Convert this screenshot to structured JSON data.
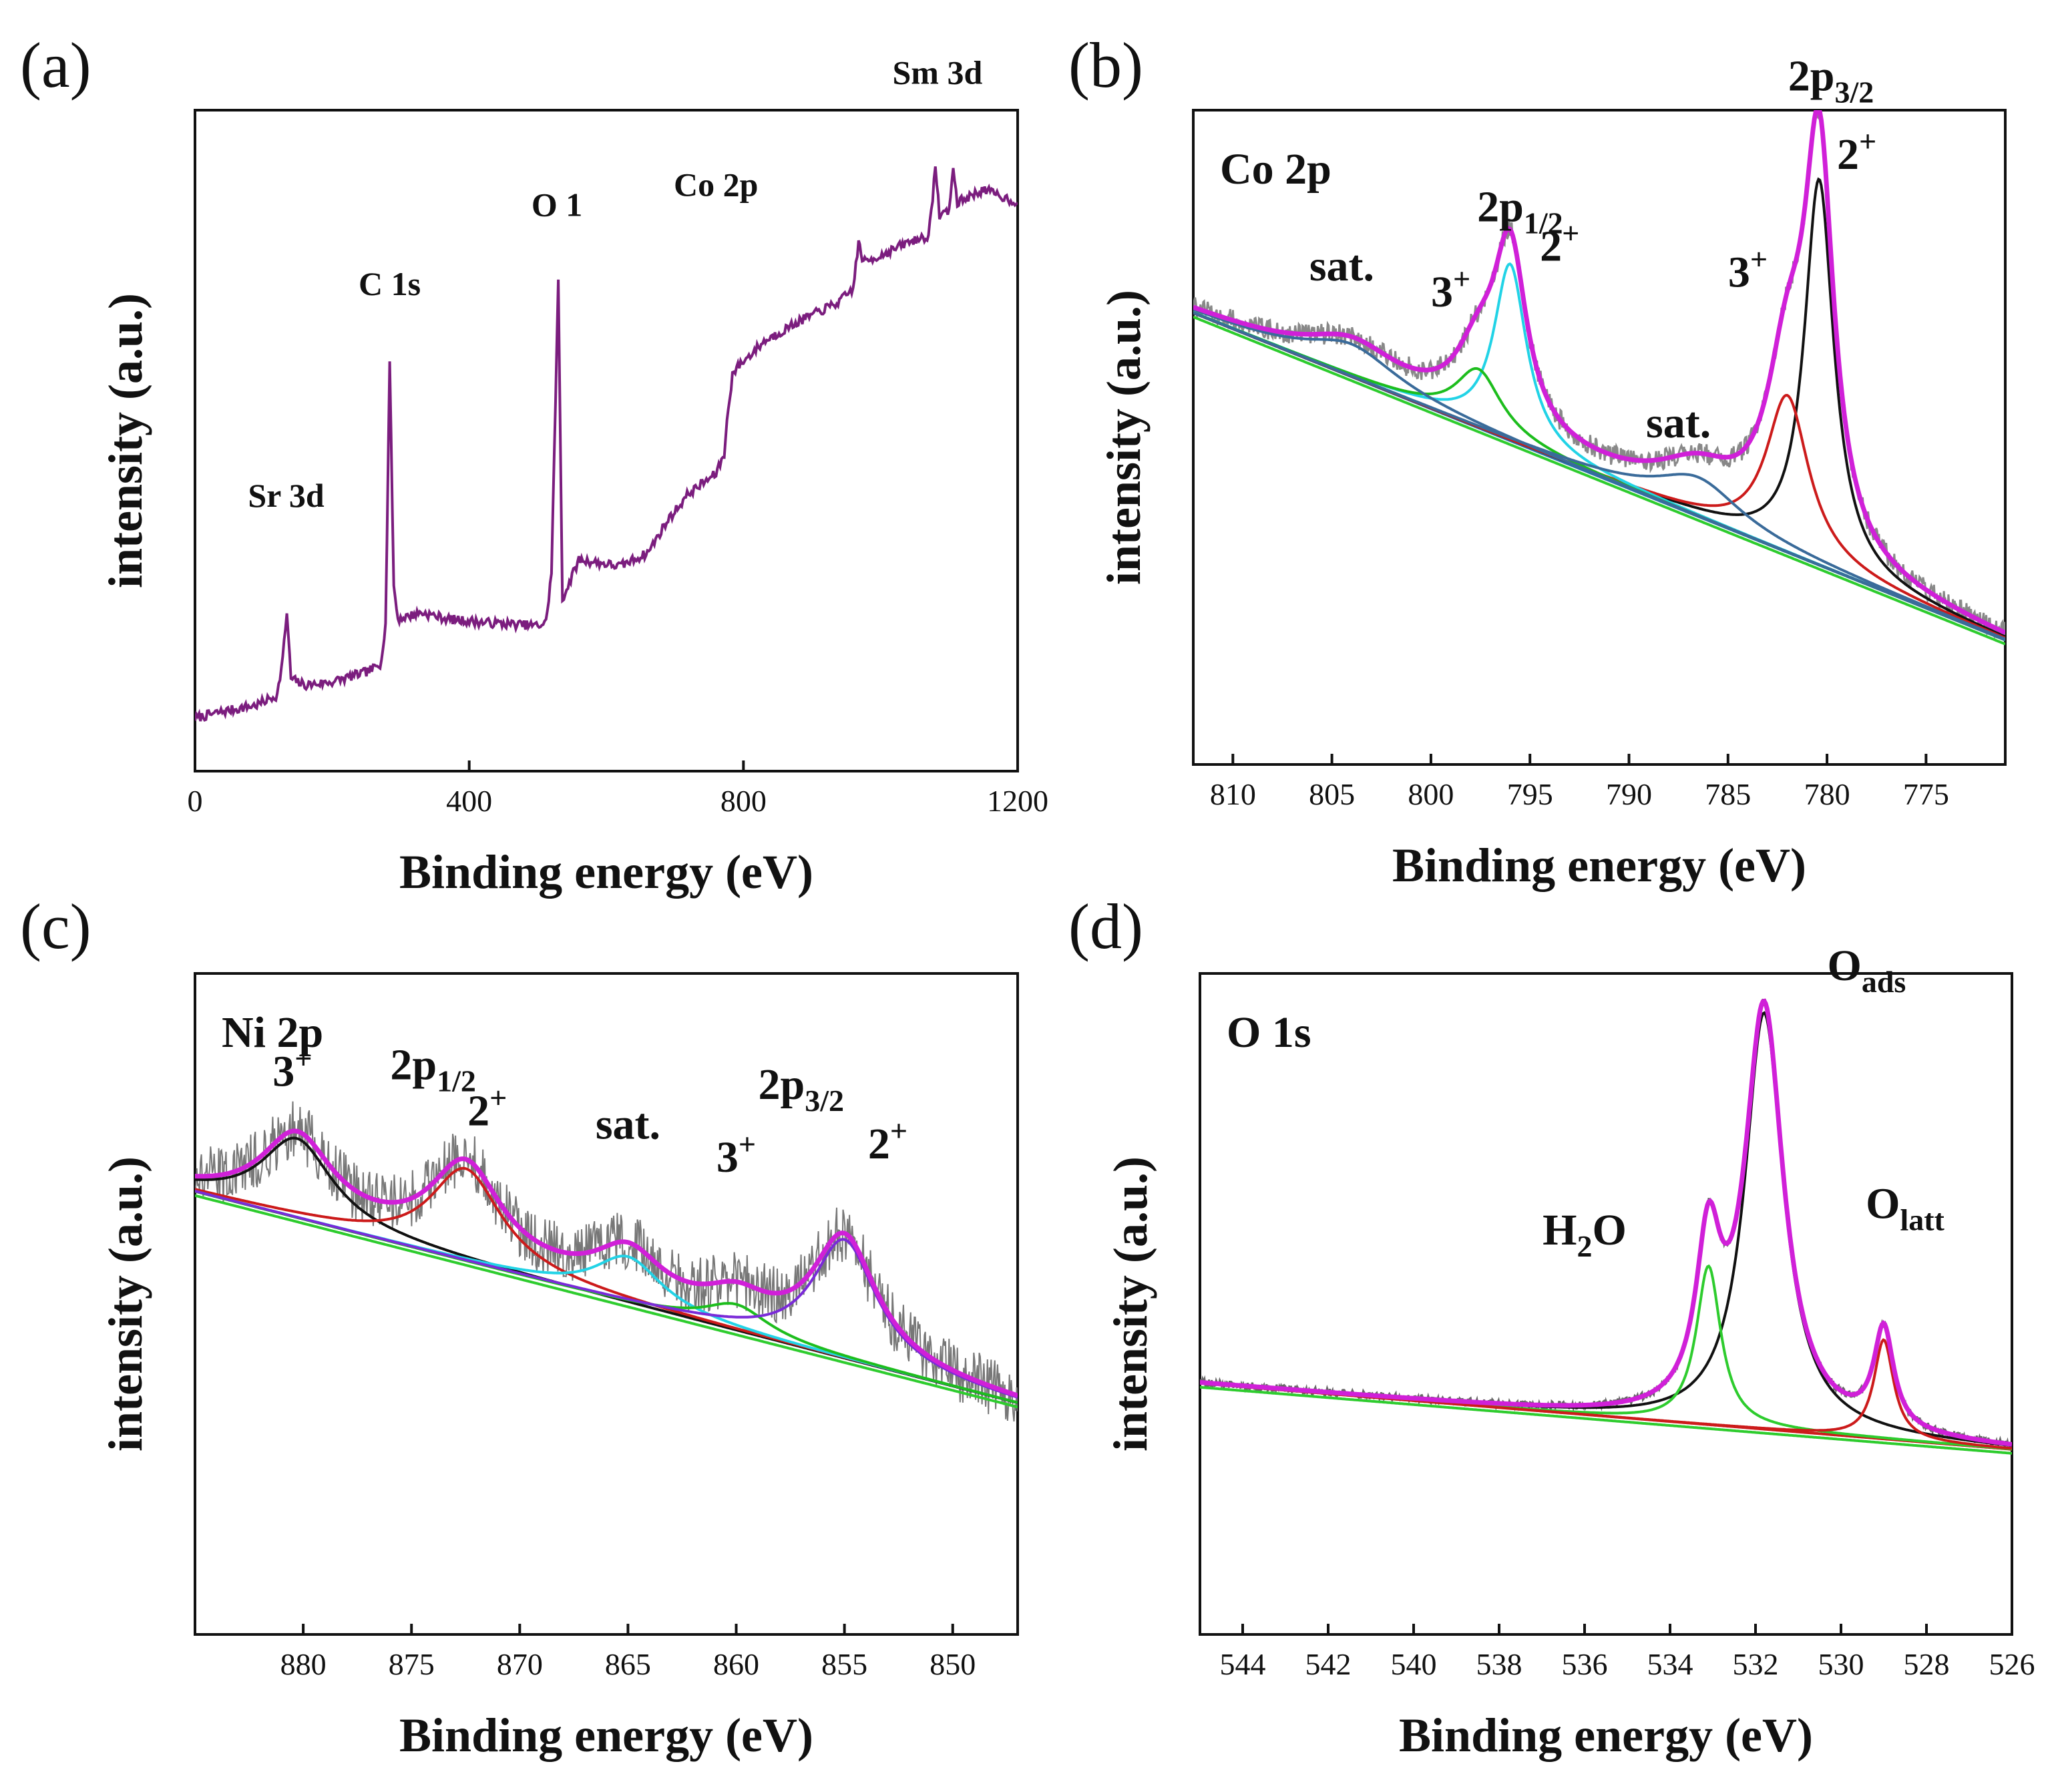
{
  "chart_data": [
    {
      "panel": "(a)",
      "type": "line",
      "title": "",
      "xlabel": "Binding energy (eV)",
      "ylabel": "intensity (a.u.)",
      "xlim": [
        0,
        1200
      ],
      "ylim": [
        0,
        100
      ],
      "x_reversed": false,
      "xticks": [
        0,
        400,
        800,
        1200
      ],
      "yticks_shown": false,
      "colors": {
        "survey": "#7b1d7e"
      },
      "series": [
        {
          "color": "#7b1d7e",
          "kind": "survey",
          "points": [
            [
              0,
              8
            ],
            [
              40,
              9
            ],
            [
              90,
              10
            ],
            [
              120,
              11.5
            ],
            [
              128,
              17
            ],
            [
              134,
              24
            ],
            [
              140,
              14
            ],
            [
              160,
              13
            ],
            [
              200,
              13.5
            ],
            [
              250,
              15
            ],
            [
              270,
              16
            ],
            [
              278,
              22
            ],
            [
              284,
              62
            ],
            [
              290,
              28
            ],
            [
              296,
              23
            ],
            [
              330,
              24
            ],
            [
              370,
              23
            ],
            [
              420,
              22.5
            ],
            [
              500,
              22
            ],
            [
              512,
              22.5
            ],
            [
              520,
              30
            ],
            [
              530,
              74
            ],
            [
              536,
              26
            ],
            [
              560,
              32
            ],
            [
              620,
              31
            ],
            [
              660,
              33
            ],
            [
              690,
              38
            ],
            [
              720,
              42
            ],
            [
              760,
              45
            ],
            [
              772,
              48
            ],
            [
              778,
              55
            ],
            [
              784,
              60
            ],
            [
              790,
              61
            ],
            [
              830,
              65
            ],
            [
              880,
              68
            ],
            [
              940,
              71
            ],
            [
              960,
              73
            ],
            [
              968,
              80
            ],
            [
              975,
              77
            ],
            [
              1000,
              78
            ],
            [
              1040,
              80
            ],
            [
              1070,
              81
            ],
            [
              1076,
              86
            ],
            [
              1080,
              92
            ],
            [
              1086,
              84
            ],
            [
              1100,
              85
            ],
            [
              1106,
              91
            ],
            [
              1112,
              86
            ],
            [
              1150,
              88
            ],
            [
              1200,
              86
            ]
          ],
          "labels": [
            {
              "text": "Sr 3d",
              "x": 133,
              "y": 40
            },
            {
              "text": "C 1s",
              "x": 284,
              "y": 72
            },
            {
              "text": "O 1",
              "x": 528,
              "y": 84
            },
            {
              "text": "Co 2p",
              "x": 760,
              "y": 87
            },
            {
              "text": "Sm 3d",
              "x": 1083,
              "y": 104
            }
          ]
        }
      ]
    },
    {
      "panel": "(b)",
      "type": "line",
      "title": "Co 2p",
      "xlabel": "Binding energy (eV)",
      "ylabel": "intensity (a.u.)",
      "xlim": [
        812,
        771
      ],
      "ylim": [
        0,
        100
      ],
      "x_reversed": true,
      "xticks": [
        810,
        805,
        800,
        795,
        790,
        785,
        780,
        775
      ],
      "yticks_shown": false,
      "colors": {
        "raw": "#888888",
        "envelope": "#d020d8",
        "background": "#2a6fa8",
        "baseline_green": "#2ecc2e",
        "co2_780": "#111111",
        "co3_782": "#cc1b1b",
        "co2_796": "#22d3e6",
        "co3_797": "#1dbd1d",
        "sat": "#3a6b9a"
      },
      "background": [
        [
          812,
          69
        ],
        [
          771,
          19
        ]
      ],
      "peaks": [
        {
          "name": "Co2+ 2p3/2",
          "color": "#111111",
          "center": 780.4,
          "height": 59,
          "width": 0.9
        },
        {
          "name": "Co3+ 2p3/2",
          "color": "#cc1b1b",
          "center": 782.0,
          "height": 24,
          "width": 1.3
        },
        {
          "name": "Co2+ 2p1/2",
          "color": "#22d3e6",
          "center": 796.0,
          "height": 27,
          "width": 1.0
        },
        {
          "name": "Co3+ 2p1/2",
          "color": "#1dbd1d",
          "center": 797.6,
          "height": 9,
          "width": 1.4
        },
        {
          "name": "sat.",
          "color": "#3a6b9a",
          "center": 786.5,
          "height": 6,
          "width": 2.6
        },
        {
          "name": "sat.",
          "color": "#3a6b9a",
          "center": 804.0,
          "height": 5,
          "width": 2.8
        }
      ],
      "annotations": [
        {
          "text": "sat.",
          "x": 804.5,
          "y": 74
        },
        {
          "text": "3",
          "sup": "+",
          "x": 799,
          "y": 70
        },
        {
          "text": "2p",
          "sub": "1/2",
          "x": 795.5,
          "y": 83
        },
        {
          "text": "2",
          "sup": "+",
          "x": 793.5,
          "y": 77
        },
        {
          "text": "sat.",
          "x": 787.5,
          "y": 50
        },
        {
          "text": "3",
          "sup": "+",
          "x": 784,
          "y": 73
        },
        {
          "text": "2p",
          "sub": "3/2",
          "x": 779.8,
          "y": 103
        },
        {
          "text": "2",
          "sup": "+",
          "x": 778.5,
          "y": 91
        }
      ]
    },
    {
      "panel": "(c)",
      "type": "line",
      "title": "Ni 2p",
      "xlabel": "Binding energy (eV)",
      "ylabel": "intensity (a.u.)",
      "xlim": [
        885,
        847
      ],
      "ylim": [
        0,
        100
      ],
      "x_reversed": true,
      "xticks": [
        880,
        875,
        870,
        865,
        860,
        855,
        850
      ],
      "yticks_shown": false,
      "colors": {
        "raw": "#777777",
        "envelope": "#d020d8",
        "baseline_green": "#2ecc2e",
        "ni3_880": "#111111",
        "ni2_872": "#cc1b1b",
        "sat_865": "#22d3e6",
        "ni3_860": "#1dbd1d",
        "ni2_855": "#7a2ad8"
      },
      "background": [
        [
          885,
          67
        ],
        [
          847,
          35
        ]
      ],
      "peaks": [
        {
          "name": "Ni3+ 2p1/2",
          "color": "#111111",
          "center": 880.3,
          "height": 12,
          "width": 2.0
        },
        {
          "name": "Ni2+ 2p1/2",
          "color": "#cc1b1b",
          "center": 872.5,
          "height": 14,
          "width": 2.0
        },
        {
          "name": "sat.",
          "color": "#22d3e6",
          "center": 865.0,
          "height": 7,
          "width": 1.9
        },
        {
          "name": "Ni3+ 2p3/2",
          "color": "#1dbd1d",
          "center": 860.0,
          "height": 4,
          "width": 1.8
        },
        {
          "name": "Ni2+ 2p3/2",
          "color": "#7a2ad8",
          "center": 855.0,
          "height": 18,
          "width": 1.8
        }
      ],
      "annotations": [
        {
          "text": "3",
          "sup": "+",
          "x": 880.5,
          "y": 83
        },
        {
          "text": "2p",
          "sub": "1/2",
          "x": 874,
          "y": 84
        },
        {
          "text": "2",
          "sup": "+",
          "x": 871.5,
          "y": 77
        },
        {
          "text": "sat.",
          "x": 865,
          "y": 75
        },
        {
          "text": "2p",
          "sub": "3/2",
          "x": 857,
          "y": 81
        },
        {
          "text": "3",
          "sup": "+",
          "x": 860,
          "y": 70
        },
        {
          "text": "2",
          "sup": "+",
          "x": 853,
          "y": 72
        }
      ]
    },
    {
      "panel": "(d)",
      "type": "line",
      "title": "O 1s",
      "xlabel": "Binding energy (eV)",
      "ylabel": "intensity (a.u.)",
      "xlim": [
        545,
        526
      ],
      "ylim": [
        0,
        100
      ],
      "x_reversed": true,
      "xticks": [
        544,
        542,
        540,
        538,
        536,
        534,
        532,
        530,
        528,
        526
      ],
      "yticks_shown": false,
      "colors": {
        "raw": "#666666",
        "envelope": "#d020d8",
        "background": "#cc1b1b",
        "baseline_green": "#2ecc2e",
        "o_ads": "#111111",
        "h2o": "#2ecc2e",
        "o_latt": "#cc1b1b"
      },
      "background": [
        [
          545,
          38
        ],
        [
          526,
          28
        ]
      ],
      "peaks": [
        {
          "name": "O_ads",
          "color": "#111111",
          "center": 531.8,
          "height": 63,
          "width": 0.55
        },
        {
          "name": "H2O",
          "color": "#2ecc2e",
          "center": 533.1,
          "height": 24,
          "width": 0.35
        },
        {
          "name": "O_latt",
          "color": "#cc1b1b",
          "center": 529.0,
          "height": 15,
          "width": 0.28
        }
      ],
      "annotations": [
        {
          "text": "O",
          "sub": "ads",
          "x": 529.4,
          "y": 99
        },
        {
          "text": "H",
          "sub": "2",
          "tail": "O",
          "x": 536,
          "y": 59
        },
        {
          "text": "O",
          "sub": "latt",
          "x": 528.5,
          "y": 63
        }
      ]
    }
  ]
}
